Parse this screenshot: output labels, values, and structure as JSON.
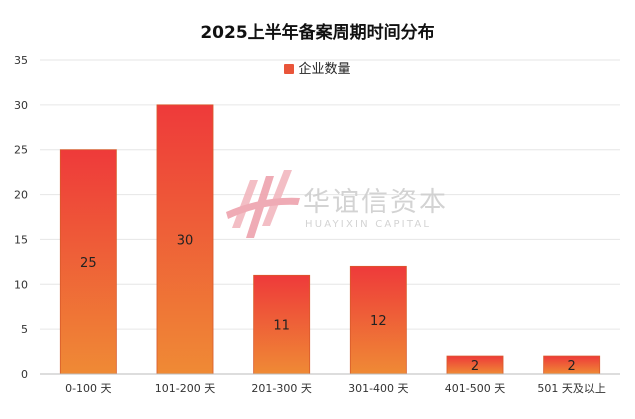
{
  "chart_data": {
    "type": "bar",
    "title": "2025上半年备案周期时间分布",
    "legend_position": "top-center",
    "grid": true,
    "ylim": [
      0,
      35
    ],
    "y_ticks": [
      0,
      5,
      10,
      15,
      20,
      25,
      30,
      35
    ],
    "categories": [
      "0-100 天",
      "101-200 天",
      "201-300 天",
      "301-400 天",
      "401-500 天",
      "501 天及以上"
    ],
    "series": [
      {
        "name": "企业数量",
        "values": [
          25,
          30,
          11,
          12,
          2,
          2
        ]
      }
    ],
    "data_labels": true
  },
  "colors": {
    "bar_top": "#ee3a3a",
    "bar_bottom": "#ef8a35",
    "bar_edge": "#d85a2a",
    "legend_swatch": "#e9553a",
    "grid": "#e6e6e6",
    "axis": "#bbbbbb"
  },
  "watermark": {
    "text_cn": "华谊信资本",
    "text_en": "HUAYIXIN CAPITAL"
  }
}
